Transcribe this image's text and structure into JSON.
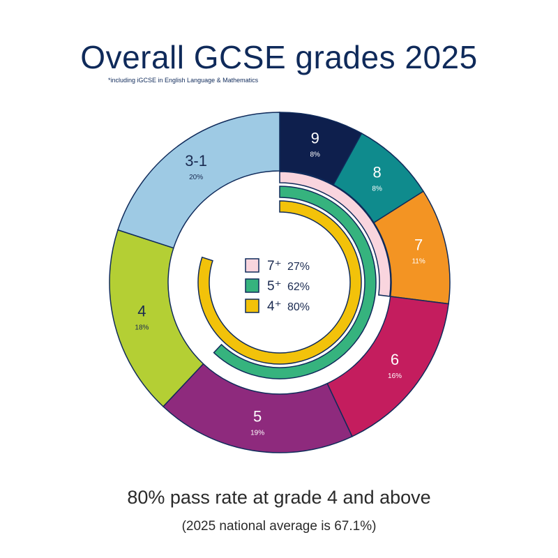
{
  "title": "Overall GCSE grades 2025",
  "subtitle": "*including iGCSE in English Language & Mathematics",
  "footer": {
    "main": "80% pass rate at grade 4 and above",
    "sub": "(2025 national average is 67.1%)"
  },
  "chart_data": {
    "type": "pie",
    "outer_ring": [
      {
        "label": "9",
        "value": 8,
        "value_label": "8%",
        "color": "#0e1f4d",
        "text_color": "#ffffff"
      },
      {
        "label": "8",
        "value": 8,
        "value_label": "8%",
        "color": "#0f8b8d",
        "text_color": "#ffffff"
      },
      {
        "label": "7",
        "value": 11,
        "value_label": "11%",
        "color": "#f39423",
        "text_color": "#ffffff"
      },
      {
        "label": "6",
        "value": 16,
        "value_label": "16%",
        "color": "#c41d5e",
        "text_color": "#ffffff"
      },
      {
        "label": "5",
        "value": 19,
        "value_label": "19%",
        "color": "#8e2a7d",
        "text_color": "#ffffff"
      },
      {
        "label": "4",
        "value": 18,
        "value_label": "18%",
        "color": "#b4cf34",
        "text_color": "#1a2a50"
      },
      {
        "label": "3-1",
        "value": 20,
        "value_label": "20%",
        "color": "#9ecae4",
        "text_color": "#1a2a50"
      }
    ],
    "inner_arcs": [
      {
        "label": "7⁺",
        "value": 27,
        "value_label": "27%",
        "color": "#f9d5de"
      },
      {
        "label": "5⁺",
        "value": 62,
        "value_label": "62%",
        "color": "#36b37e"
      },
      {
        "label": "4⁺",
        "value": 80,
        "value_label": "80%",
        "color": "#f2c20a"
      }
    ]
  }
}
